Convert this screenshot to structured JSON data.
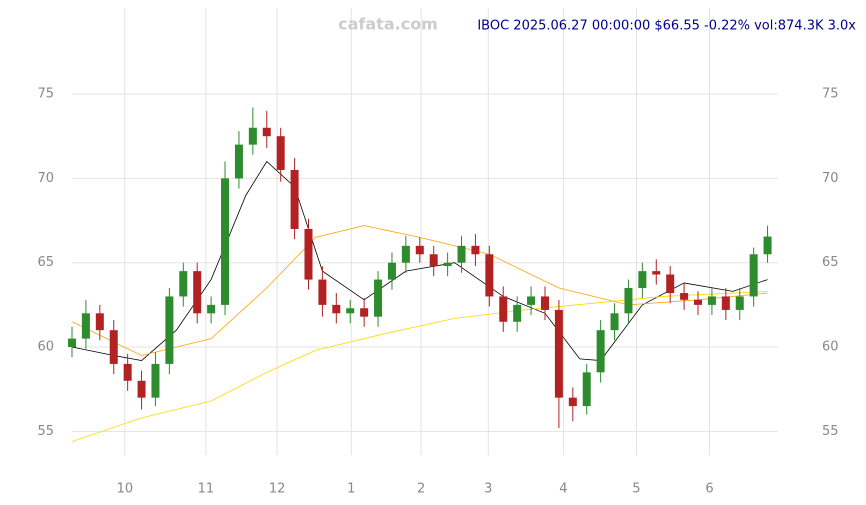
{
  "chart_data": {
    "type": "candlestick",
    "title": "IBOC 2025.06.27 00:00:00 $66.55 -0.22% vol:874.3K 3.0x",
    "watermark": "cafata.com",
    "xlim": [
      0,
      203
    ],
    "xticks": [
      {
        "value": 15.2,
        "label": "10"
      },
      {
        "value": 38.5,
        "label": "11"
      },
      {
        "value": 59,
        "label": "12"
      },
      {
        "value": 80.3,
        "label": "1"
      },
      {
        "value": 100.4,
        "label": "2"
      },
      {
        "value": 119.7,
        "label": "3"
      },
      {
        "value": 141.3,
        "label": "4"
      },
      {
        "value": 162.3,
        "label": "5"
      },
      {
        "value": 183.3,
        "label": "6"
      }
    ],
    "ylim": [
      53.6,
      80.1
    ],
    "yticks": [
      55,
      60,
      65,
      70,
      75
    ],
    "grid": true,
    "up_color": "#2e8b2e",
    "down_color": "#b22222",
    "x": [
      0,
      4,
      8,
      12,
      16,
      20,
      24,
      28,
      32,
      36,
      40,
      44,
      48,
      52,
      56,
      60,
      64,
      68,
      72,
      76,
      80,
      84,
      88,
      92,
      96,
      100,
      104,
      108,
      112,
      116,
      120,
      124,
      128,
      132,
      136,
      140,
      144,
      148,
      152,
      156,
      160,
      164,
      168,
      172,
      176,
      180,
      184,
      188,
      192,
      196,
      200
    ],
    "open": [
      60,
      60.5,
      62,
      61,
      59,
      58,
      57,
      59,
      63,
      64.5,
      62,
      62.5,
      70,
      72,
      73,
      72.5,
      70.5,
      67,
      64,
      62.5,
      62,
      62.3,
      61.8,
      64,
      65,
      66,
      65.5,
      64.8,
      65,
      66,
      65.5,
      63,
      61.5,
      62.5,
      63,
      62.2,
      57,
      56.5,
      58.5,
      61,
      62,
      63.5,
      64.5,
      64.3,
      63.2,
      62.8,
      62.5,
      63,
      62.2,
      63,
      65.5
    ],
    "high": [
      61.2,
      62.8,
      62.5,
      61.6,
      59.6,
      58.6,
      59.7,
      63.5,
      65,
      65,
      63,
      71,
      72.8,
      74.2,
      74,
      73,
      71.2,
      67.6,
      64.8,
      63.2,
      62.8,
      62.9,
      64.5,
      65.6,
      66.6,
      66.5,
      66,
      65.6,
      66.6,
      66.7,
      66,
      63.6,
      63,
      63.6,
      63.6,
      62.8,
      57.6,
      59,
      61.6,
      62.6,
      64,
      65,
      65.2,
      64.8,
      63.8,
      63.3,
      63.5,
      63.5,
      63.5,
      65.9,
      67.2
    ],
    "low": [
      59.4,
      59.9,
      60.4,
      58.4,
      57.4,
      56.3,
      56.5,
      58.4,
      62.4,
      61.4,
      61.4,
      61.9,
      69.4,
      71.4,
      71.8,
      69.8,
      66.4,
      63.4,
      61.8,
      61.4,
      61.4,
      61.2,
      61.2,
      63.4,
      64.4,
      65,
      64.2,
      64.2,
      64.4,
      64.8,
      62.4,
      60.9,
      60.9,
      61.9,
      61.6,
      55.2,
      55.6,
      56,
      57.9,
      60.4,
      61.4,
      62.9,
      63.7,
      62.6,
      62.2,
      61.9,
      61.9,
      61.6,
      61.6,
      62.4,
      65
    ],
    "close": [
      60.5,
      62,
      61,
      59,
      58,
      57,
      59,
      63,
      64.5,
      62,
      62.5,
      70,
      72,
      73,
      72.5,
      70.5,
      67,
      64,
      62.5,
      62,
      62.3,
      61.8,
      64,
      65,
      66,
      65.5,
      64.8,
      65,
      66,
      65.5,
      63,
      61.5,
      62.5,
      63,
      62.2,
      57,
      56.5,
      58.5,
      61,
      62,
      63.5,
      64.5,
      64.3,
      63.2,
      62.8,
      62.5,
      63,
      62.2,
      63,
      65.5,
      66.55
    ],
    "overlays": [
      {
        "color": "#000000",
        "x": [
          0,
          12,
          20,
          30,
          40,
          50,
          56,
          64,
          72,
          84,
          96,
          110,
          124,
          136,
          146,
          152,
          164,
          176,
          190,
          200
        ],
        "values": [
          60,
          59.5,
          59.2,
          61,
          64,
          69,
          71,
          69.5,
          64.5,
          62.8,
          64.5,
          65,
          63,
          62,
          59.3,
          59.2,
          62.5,
          63.8,
          63.3,
          64
        ]
      },
      {
        "color": "#ffa500",
        "x": [
          0,
          20,
          40,
          56,
          70,
          84,
          100,
          120,
          140,
          160,
          180,
          200
        ],
        "values": [
          61.5,
          59.5,
          60.5,
          63.5,
          66.5,
          67.2,
          66.5,
          65.5,
          63.5,
          62.5,
          62.8,
          63.2
        ]
      },
      {
        "color": "#ffd700",
        "x": [
          0,
          20,
          40,
          56,
          70,
          90,
          110,
          130,
          150,
          170,
          190,
          200
        ],
        "values": [
          54.4,
          55.8,
          56.8,
          58.5,
          59.8,
          60.8,
          61.7,
          62.2,
          62.6,
          63,
          63.2,
          63.3
        ]
      }
    ]
  }
}
